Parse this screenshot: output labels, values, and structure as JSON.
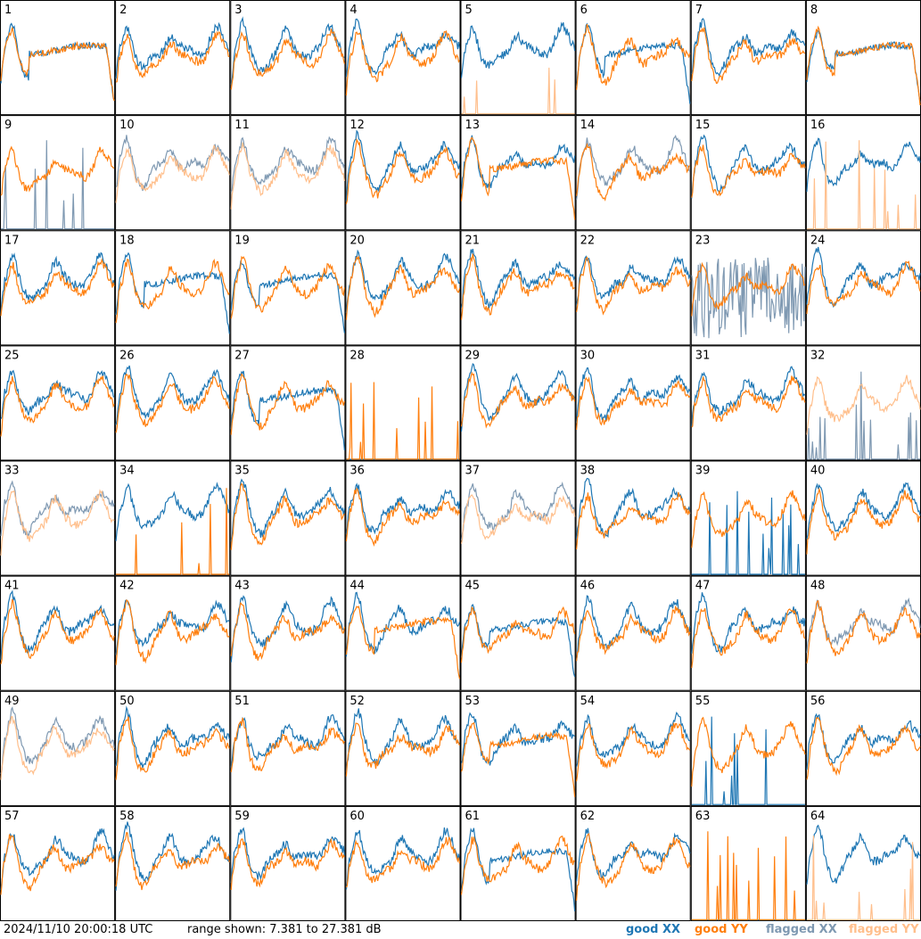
{
  "footer": {
    "timestamp": "2024/11/10 20:00:18 UTC",
    "range_text": "range shown: 7.381 to 27.381 dB"
  },
  "legend": {
    "good_xx": "good XX",
    "good_yy": "good YY",
    "flagged_xx": "flagged XX",
    "flagged_yy": "flagged YY"
  },
  "colors": {
    "good_xx": "#1f77b4",
    "good_yy": "#ff7f0e",
    "flagged_xx": "#7f99b2",
    "flagged_yy": "#ffbf8c",
    "frame": "#000000",
    "background": "#ffffff"
  },
  "chart_data": {
    "type": "line",
    "layout": "8x8 small-multiples grid",
    "ylim": [
      7.381,
      27.381
    ],
    "yunit": "dB",
    "tiles": [
      {
        "label": "1",
        "xx": "good",
        "yy": "good",
        "xx_mode": "drop",
        "yy_mode": "drop"
      },
      {
        "label": "2",
        "xx": "good",
        "yy": "good",
        "xx_mode": "normal",
        "yy_mode": "normal"
      },
      {
        "label": "3",
        "xx": "good",
        "yy": "good",
        "xx_mode": "normal",
        "yy_mode": "normal"
      },
      {
        "label": "4",
        "xx": "good",
        "yy": "good",
        "xx_mode": "normal",
        "yy_mode": "normal"
      },
      {
        "label": "5",
        "xx": "good",
        "yy": "flagged",
        "xx_mode": "normal",
        "yy_mode": "spikes"
      },
      {
        "label": "6",
        "xx": "good",
        "yy": "good",
        "xx_mode": "drop",
        "yy_mode": "normal"
      },
      {
        "label": "7",
        "xx": "good",
        "yy": "good",
        "xx_mode": "normal",
        "yy_mode": "normal"
      },
      {
        "label": "8",
        "xx": "good",
        "yy": "good",
        "xx_mode": "drop",
        "yy_mode": "drop"
      },
      {
        "label": "9",
        "xx": "flagged",
        "yy": "good",
        "xx_mode": "spikes",
        "yy_mode": "normal"
      },
      {
        "label": "10",
        "xx": "flagged",
        "yy": "flagged",
        "xx_mode": "normal",
        "yy_mode": "normal"
      },
      {
        "label": "11",
        "xx": "flagged",
        "yy": "flagged",
        "xx_mode": "normal",
        "yy_mode": "normal"
      },
      {
        "label": "12",
        "xx": "good",
        "yy": "good",
        "xx_mode": "normal",
        "yy_mode": "normal"
      },
      {
        "label": "13",
        "xx": "good",
        "yy": "good",
        "xx_mode": "normal",
        "yy_mode": "drop"
      },
      {
        "label": "14",
        "xx": "flagged",
        "yy": "good",
        "xx_mode": "normal",
        "yy_mode": "normal"
      },
      {
        "label": "15",
        "xx": "good",
        "yy": "good",
        "xx_mode": "normal",
        "yy_mode": "normal"
      },
      {
        "label": "16",
        "xx": "good",
        "yy": "flagged",
        "xx_mode": "normal",
        "yy_mode": "spikes"
      },
      {
        "label": "17",
        "xx": "good",
        "yy": "good",
        "xx_mode": "normal",
        "yy_mode": "normal"
      },
      {
        "label": "18",
        "xx": "good",
        "yy": "good",
        "xx_mode": "drop",
        "yy_mode": "normal"
      },
      {
        "label": "19",
        "xx": "good",
        "yy": "good",
        "xx_mode": "drop",
        "yy_mode": "normal"
      },
      {
        "label": "20",
        "xx": "good",
        "yy": "good",
        "xx_mode": "normal",
        "yy_mode": "normal"
      },
      {
        "label": "21",
        "xx": "good",
        "yy": "good",
        "xx_mode": "normal",
        "yy_mode": "normal"
      },
      {
        "label": "22",
        "xx": "good",
        "yy": "good",
        "xx_mode": "normal",
        "yy_mode": "normal"
      },
      {
        "label": "23",
        "xx": "flagged",
        "yy": "good",
        "xx_mode": "noisy",
        "yy_mode": "normal"
      },
      {
        "label": "24",
        "xx": "good",
        "yy": "good",
        "xx_mode": "normal",
        "yy_mode": "normal"
      },
      {
        "label": "25",
        "xx": "good",
        "yy": "good",
        "xx_mode": "normal",
        "yy_mode": "normal"
      },
      {
        "label": "26",
        "xx": "good",
        "yy": "good",
        "xx_mode": "normal",
        "yy_mode": "normal"
      },
      {
        "label": "27",
        "xx": "good",
        "yy": "good",
        "xx_mode": "drop",
        "yy_mode": "normal"
      },
      {
        "label": "28",
        "xx": "good",
        "yy": "good",
        "xx_mode": "none",
        "yy_mode": "spikes"
      },
      {
        "label": "29",
        "xx": "good",
        "yy": "good",
        "xx_mode": "normal",
        "yy_mode": "normal"
      },
      {
        "label": "30",
        "xx": "good",
        "yy": "good",
        "xx_mode": "normal",
        "yy_mode": "normal"
      },
      {
        "label": "31",
        "xx": "good",
        "yy": "good",
        "xx_mode": "normal",
        "yy_mode": "normal"
      },
      {
        "label": "32",
        "xx": "flagged",
        "yy": "flagged",
        "xx_mode": "spikes",
        "yy_mode": "normal"
      },
      {
        "label": "33",
        "xx": "flagged",
        "yy": "flagged",
        "xx_mode": "normal",
        "yy_mode": "normal"
      },
      {
        "label": "34",
        "xx": "good",
        "yy": "good",
        "xx_mode": "normal",
        "yy_mode": "spikes"
      },
      {
        "label": "35",
        "xx": "good",
        "yy": "good",
        "xx_mode": "normal",
        "yy_mode": "normal"
      },
      {
        "label": "36",
        "xx": "good",
        "yy": "good",
        "xx_mode": "normal",
        "yy_mode": "normal"
      },
      {
        "label": "37",
        "xx": "flagged",
        "yy": "flagged",
        "xx_mode": "normal",
        "yy_mode": "normal"
      },
      {
        "label": "38",
        "xx": "good",
        "yy": "good",
        "xx_mode": "normal",
        "yy_mode": "normal"
      },
      {
        "label": "39",
        "xx": "good",
        "yy": "good",
        "xx_mode": "spikes",
        "yy_mode": "normal"
      },
      {
        "label": "40",
        "xx": "good",
        "yy": "good",
        "xx_mode": "normal",
        "yy_mode": "normal"
      },
      {
        "label": "41",
        "xx": "good",
        "yy": "good",
        "xx_mode": "normal",
        "yy_mode": "normal"
      },
      {
        "label": "42",
        "xx": "good",
        "yy": "good",
        "xx_mode": "normal",
        "yy_mode": "normal"
      },
      {
        "label": "43",
        "xx": "good",
        "yy": "good",
        "xx_mode": "normal",
        "yy_mode": "normal"
      },
      {
        "label": "44",
        "xx": "good",
        "yy": "good",
        "xx_mode": "normal",
        "yy_mode": "drop"
      },
      {
        "label": "45",
        "xx": "good",
        "yy": "good",
        "xx_mode": "drop",
        "yy_mode": "normal"
      },
      {
        "label": "46",
        "xx": "good",
        "yy": "good",
        "xx_mode": "normal",
        "yy_mode": "normal"
      },
      {
        "label": "47",
        "xx": "good",
        "yy": "good",
        "xx_mode": "normal",
        "yy_mode": "normal"
      },
      {
        "label": "48",
        "xx": "flagged",
        "yy": "good",
        "xx_mode": "normal",
        "yy_mode": "normal"
      },
      {
        "label": "49",
        "xx": "flagged",
        "yy": "flagged",
        "xx_mode": "normal",
        "yy_mode": "normal"
      },
      {
        "label": "50",
        "xx": "good",
        "yy": "good",
        "xx_mode": "normal",
        "yy_mode": "normal"
      },
      {
        "label": "51",
        "xx": "good",
        "yy": "good",
        "xx_mode": "normal",
        "yy_mode": "normal"
      },
      {
        "label": "52",
        "xx": "good",
        "yy": "good",
        "xx_mode": "normal",
        "yy_mode": "normal"
      },
      {
        "label": "53",
        "xx": "good",
        "yy": "good",
        "xx_mode": "normal",
        "yy_mode": "drop"
      },
      {
        "label": "54",
        "xx": "good",
        "yy": "good",
        "xx_mode": "normal",
        "yy_mode": "normal"
      },
      {
        "label": "55",
        "xx": "good",
        "yy": "good",
        "xx_mode": "spikes",
        "yy_mode": "normal"
      },
      {
        "label": "56",
        "xx": "good",
        "yy": "good",
        "xx_mode": "normal",
        "yy_mode": "normal"
      },
      {
        "label": "57",
        "xx": "good",
        "yy": "good",
        "xx_mode": "normal",
        "yy_mode": "normal"
      },
      {
        "label": "58",
        "xx": "good",
        "yy": "good",
        "xx_mode": "normal",
        "yy_mode": "normal"
      },
      {
        "label": "59",
        "xx": "good",
        "yy": "good",
        "xx_mode": "normal",
        "yy_mode": "normal"
      },
      {
        "label": "60",
        "xx": "good",
        "yy": "good",
        "xx_mode": "normal",
        "yy_mode": "normal"
      },
      {
        "label": "61",
        "xx": "good",
        "yy": "good",
        "xx_mode": "drop",
        "yy_mode": "normal"
      },
      {
        "label": "62",
        "xx": "good",
        "yy": "good",
        "xx_mode": "normal",
        "yy_mode": "normal"
      },
      {
        "label": "63",
        "xx": "good",
        "yy": "good",
        "xx_mode": "none",
        "yy_mode": "spikes"
      },
      {
        "label": "64",
        "xx": "good",
        "yy": "flagged",
        "xx_mode": "normal",
        "yy_mode": "spikes"
      }
    ]
  }
}
